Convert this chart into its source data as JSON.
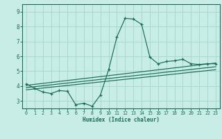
{
  "title": "",
  "xlabel": "Humidex (Indice chaleur)",
  "ylabel": "",
  "bg_color": "#c8ece6",
  "line_color": "#1a6b5a",
  "grid_color": "#a8d8d0",
  "xlim": [
    -0.5,
    23.5
  ],
  "ylim": [
    2.5,
    9.5
  ],
  "yticks": [
    3,
    4,
    5,
    6,
    7,
    8,
    9
  ],
  "xticks": [
    0,
    1,
    2,
    3,
    4,
    5,
    6,
    7,
    8,
    9,
    10,
    11,
    12,
    13,
    14,
    15,
    16,
    17,
    18,
    19,
    20,
    21,
    22,
    23
  ],
  "main_line_x": [
    0,
    1,
    2,
    3,
    4,
    5,
    6,
    7,
    8,
    9,
    10,
    11,
    12,
    13,
    14,
    15,
    16,
    17,
    18,
    19,
    20,
    21,
    22,
    23
  ],
  "main_line_y": [
    4.15,
    3.85,
    3.6,
    3.5,
    3.7,
    3.65,
    2.75,
    2.85,
    2.65,
    3.4,
    5.1,
    7.3,
    8.55,
    8.5,
    8.15,
    5.95,
    5.5,
    5.65,
    5.7,
    5.8,
    5.5,
    5.45,
    5.5,
    5.5
  ],
  "reg_lines": [
    {
      "x": [
        0,
        23
      ],
      "y": [
        4.05,
        5.55
      ]
    },
    {
      "x": [
        0,
        23
      ],
      "y": [
        3.9,
        5.3
      ]
    },
    {
      "x": [
        0,
        23
      ],
      "y": [
        3.75,
        5.1
      ]
    }
  ]
}
